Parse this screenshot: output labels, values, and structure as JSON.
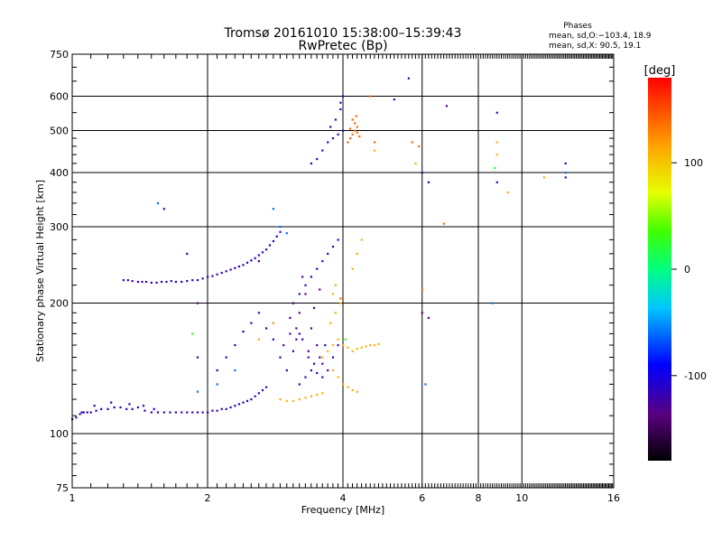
{
  "chart_data": {
    "type": "scatter",
    "title": "Tromsø 20161010 15:38:00–15:39:43",
    "subtitle": "RwPretec (Bp)",
    "xlabel": "Frequency [MHz]",
    "ylabel": "Stationary phase Virtual Height [km]",
    "xscale": "log",
    "yscale": "log",
    "xlim": [
      1,
      16
    ],
    "ylim": [
      75,
      750
    ],
    "xticks": [
      1,
      2,
      4,
      6,
      8,
      10,
      16
    ],
    "yticks": [
      75,
      100,
      200,
      300,
      400,
      500,
      600,
      750
    ],
    "grid": true,
    "phases_note": {
      "title": "Phases",
      "line1": "mean, sd,O:−103.4, 18.9",
      "line2": "mean, sd,X:  90.5, 19.1"
    },
    "colorbar": {
      "label": "[deg]",
      "range": [
        -180,
        180
      ],
      "ticks": [
        100,
        0,
        -100
      ],
      "palette": "rainbow"
    },
    "series": [
      {
        "color_deg": -115,
        "points": [
          [
            1.0,
            108
          ],
          [
            1.02,
            109
          ],
          [
            1.04,
            111
          ],
          [
            1.06,
            112
          ],
          [
            1.08,
            112
          ],
          [
            1.1,
            112
          ],
          [
            1.13,
            113
          ],
          [
            1.16,
            114
          ],
          [
            1.2,
            114
          ],
          [
            1.24,
            115
          ],
          [
            1.28,
            115
          ],
          [
            1.32,
            114
          ],
          [
            1.36,
            114
          ],
          [
            1.4,
            115
          ],
          [
            1.45,
            113
          ],
          [
            1.5,
            112
          ],
          [
            1.55,
            112
          ],
          [
            1.6,
            112
          ],
          [
            1.65,
            112
          ],
          [
            1.7,
            112
          ],
          [
            1.75,
            112
          ],
          [
            1.8,
            112
          ],
          [
            1.85,
            112
          ],
          [
            1.9,
            112
          ],
          [
            1.95,
            112
          ],
          [
            2.0,
            112
          ],
          [
            2.05,
            113
          ],
          [
            2.1,
            113
          ],
          [
            2.15,
            114
          ],
          [
            2.2,
            114
          ],
          [
            2.25,
            115
          ],
          [
            2.3,
            116
          ],
          [
            2.35,
            117
          ],
          [
            2.4,
            118
          ],
          [
            2.45,
            119
          ],
          [
            2.5,
            120
          ],
          [
            2.55,
            122
          ],
          [
            2.6,
            124
          ],
          [
            2.65,
            126
          ],
          [
            2.7,
            128
          ],
          [
            1.3,
            226
          ],
          [
            1.33,
            226
          ],
          [
            1.36,
            225
          ],
          [
            1.4,
            224
          ],
          [
            1.43,
            224
          ],
          [
            1.46,
            224
          ],
          [
            1.5,
            223
          ],
          [
            1.54,
            223
          ],
          [
            1.58,
            224
          ],
          [
            1.62,
            224
          ],
          [
            1.66,
            225
          ],
          [
            1.7,
            224
          ],
          [
            1.75,
            224
          ],
          [
            1.8,
            225
          ],
          [
            1.85,
            226
          ],
          [
            1.9,
            226
          ],
          [
            1.95,
            228
          ],
          [
            2.0,
            230
          ],
          [
            2.05,
            231
          ],
          [
            2.1,
            233
          ],
          [
            2.15,
            235
          ],
          [
            2.2,
            237
          ],
          [
            2.25,
            239
          ],
          [
            2.3,
            241
          ],
          [
            2.35,
            243
          ],
          [
            2.4,
            245
          ],
          [
            2.45,
            248
          ],
          [
            2.5,
            251
          ],
          [
            2.55,
            254
          ],
          [
            2.6,
            258
          ],
          [
            2.65,
            262
          ],
          [
            2.7,
            266
          ],
          [
            2.75,
            272
          ],
          [
            2.8,
            278
          ],
          [
            2.85,
            285
          ],
          [
            2.9,
            292
          ],
          [
            1.05,
            112
          ],
          [
            1.12,
            116
          ],
          [
            1.22,
            118
          ],
          [
            1.34,
            117
          ],
          [
            1.44,
            116
          ],
          [
            1.52,
            114
          ],
          [
            2.1,
            140
          ],
          [
            2.2,
            150
          ],
          [
            2.3,
            160
          ],
          [
            2.4,
            172
          ],
          [
            2.5,
            180
          ],
          [
            2.6,
            190
          ],
          [
            2.7,
            175
          ],
          [
            2.8,
            165
          ],
          [
            2.9,
            150
          ],
          [
            3.0,
            140
          ],
          [
            3.1,
            155
          ],
          [
            3.2,
            170
          ],
          [
            3.2,
            130
          ],
          [
            3.3,
            135
          ],
          [
            3.4,
            140
          ],
          [
            3.5,
            138
          ],
          [
            3.6,
            135
          ],
          [
            3.7,
            140
          ],
          [
            3.8,
            150
          ],
          [
            3.9,
            160
          ],
          [
            3.1,
            200
          ],
          [
            3.2,
            210
          ],
          [
            3.3,
            220
          ],
          [
            3.4,
            230
          ],
          [
            3.5,
            240
          ],
          [
            3.6,
            250
          ],
          [
            3.7,
            260
          ],
          [
            3.8,
            270
          ],
          [
            3.9,
            280
          ],
          [
            3.05,
            185
          ],
          [
            3.15,
            175
          ],
          [
            3.25,
            165
          ],
          [
            3.35,
            155
          ],
          [
            3.45,
            145
          ],
          [
            3.55,
            150
          ],
          [
            3.65,
            160
          ],
          [
            3.4,
            420
          ],
          [
            3.5,
            430
          ],
          [
            3.6,
            450
          ],
          [
            3.7,
            470
          ],
          [
            3.8,
            480
          ],
          [
            3.9,
            490
          ],
          [
            4.0,
            500
          ],
          [
            3.75,
            510
          ],
          [
            3.85,
            530
          ],
          [
            3.95,
            560
          ],
          [
            4.0,
            600
          ],
          [
            3.95,
            580
          ],
          [
            5.6,
            660
          ],
          [
            5.2,
            590
          ],
          [
            6.0,
            400
          ],
          [
            6.2,
            380
          ],
          [
            8.8,
            550
          ],
          [
            8.8,
            380
          ],
          [
            12.5,
            420
          ],
          [
            12.5,
            390
          ],
          [
            1.6,
            330
          ],
          [
            1.8,
            260
          ],
          [
            1.9,
            150
          ]
        ]
      },
      {
        "color_deg": -135,
        "points": [
          [
            1.9,
            200
          ],
          [
            2.6,
            250
          ],
          [
            2.8,
            180
          ],
          [
            3.1,
            200
          ],
          [
            3.2,
            190
          ],
          [
            3.3,
            210
          ],
          [
            3.4,
            175
          ],
          [
            3.5,
            160
          ],
          [
            3.6,
            145
          ],
          [
            3.25,
            230
          ],
          [
            3.15,
            165
          ],
          [
            3.45,
            195
          ],
          [
            3.55,
            215
          ],
          [
            3.35,
            150
          ],
          [
            3.05,
            170
          ],
          [
            2.95,
            160
          ],
          [
            6.0,
            190
          ],
          [
            6.2,
            185
          ],
          [
            6.8,
            570
          ]
        ]
      },
      {
        "color_deg": -60,
        "points": [
          [
            2.8,
            330
          ],
          [
            2.9,
            300
          ],
          [
            3.0,
            290
          ],
          [
            1.55,
            340
          ],
          [
            1.9,
            125
          ],
          [
            2.1,
            130
          ],
          [
            2.3,
            140
          ],
          [
            8.6,
            200
          ],
          [
            12.5,
            400
          ],
          [
            6.1,
            130
          ]
        ]
      },
      {
        "color_deg": 110,
        "points": [
          [
            2.9,
            120
          ],
          [
            3.0,
            119
          ],
          [
            3.1,
            119
          ],
          [
            3.2,
            120
          ],
          [
            3.3,
            121
          ],
          [
            3.4,
            122
          ],
          [
            3.5,
            123
          ],
          [
            3.6,
            124
          ],
          [
            3.6,
            150
          ],
          [
            3.7,
            155
          ],
          [
            3.8,
            160
          ],
          [
            3.9,
            165
          ],
          [
            4.0,
            160
          ],
          [
            4.1,
            158
          ],
          [
            4.2,
            155
          ],
          [
            4.3,
            157
          ],
          [
            4.4,
            158
          ],
          [
            4.5,
            159
          ],
          [
            4.6,
            160
          ],
          [
            4.7,
            160
          ],
          [
            4.8,
            161
          ],
          [
            3.8,
            140
          ],
          [
            3.9,
            135
          ],
          [
            4.0,
            130
          ],
          [
            4.1,
            128
          ],
          [
            4.2,
            126
          ],
          [
            4.3,
            125
          ],
          [
            3.75,
            180
          ],
          [
            3.85,
            190
          ],
          [
            3.95,
            200
          ],
          [
            3.8,
            210
          ],
          [
            3.85,
            220
          ],
          [
            4.2,
            240
          ],
          [
            4.3,
            260
          ],
          [
            4.4,
            280
          ],
          [
            4.7,
            450
          ],
          [
            5.8,
            420
          ],
          [
            8.8,
            470
          ],
          [
            8.8,
            440
          ],
          [
            9.3,
            360
          ],
          [
            11.2,
            390
          ],
          [
            2.8,
            180
          ],
          [
            2.6,
            165
          ]
        ]
      },
      {
        "color_deg": 140,
        "points": [
          [
            4.1,
            470
          ],
          [
            4.15,
            480
          ],
          [
            4.2,
            490
          ],
          [
            4.25,
            500
          ],
          [
            4.3,
            510
          ],
          [
            4.2,
            530
          ],
          [
            4.25,
            520
          ],
          [
            4.3,
            495
          ],
          [
            4.35,
            485
          ],
          [
            4.15,
            505
          ],
          [
            4.28,
            540
          ],
          [
            4.6,
            600
          ],
          [
            4.7,
            470
          ],
          [
            5.9,
            460
          ],
          [
            5.7,
            470
          ],
          [
            6.7,
            305
          ],
          [
            6.0,
            215
          ],
          [
            3.95,
            205
          ]
        ]
      },
      {
        "color_deg": 20,
        "points": [
          [
            1.85,
            170
          ],
          [
            8.7,
            410
          ],
          [
            4.05,
            165
          ]
        ]
      }
    ]
  }
}
